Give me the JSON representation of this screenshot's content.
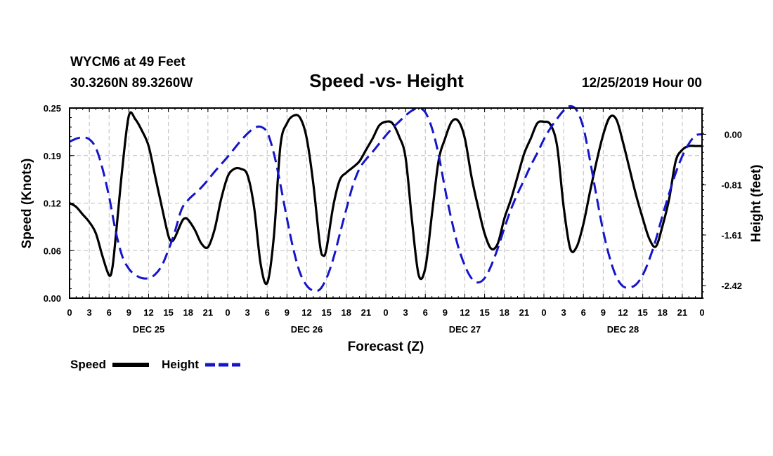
{
  "header": {
    "station": "WYCM6 at 49 Feet",
    "coords": "30.3260N 89.3260W",
    "title": "Speed -vs- Height",
    "run": "12/25/2019 Hour 00"
  },
  "chart_data": {
    "type": "line",
    "title": "Speed -vs- Height",
    "xlabel": "Forecast (Z)",
    "ylabel": "Speed (Knots)",
    "y2label": "Height (feet)",
    "x_range_hours": [
      0,
      96
    ],
    "x_tick_labels": [
      "0",
      "3",
      "6",
      "9",
      "12",
      "15",
      "18",
      "21",
      "0",
      "3",
      "6",
      "9",
      "12",
      "15",
      "18",
      "21",
      "0",
      "3",
      "6",
      "9",
      "12",
      "15",
      "18",
      "21",
      "0",
      "3",
      "6",
      "9",
      "12",
      "15",
      "18",
      "21",
      "0"
    ],
    "day_labels": [
      "DEC 25",
      "DEC 26",
      "DEC 27",
      "DEC 28"
    ],
    "y_ticks": [
      "0.00",
      "0.06",
      "0.12",
      "0.19",
      "0.25"
    ],
    "y_range": [
      0,
      0.25
    ],
    "y2_ticks": [
      "0.00",
      "-0.81",
      "-1.61",
      "-2.42"
    ],
    "y2_range": [
      -2.62,
      0.42
    ],
    "grid": true,
    "series": [
      {
        "name": "Speed",
        "axis": "left",
        "color": "#000000",
        "style": "solid",
        "points": [
          [
            0,
            0.125
          ],
          [
            1,
            0.12
          ],
          [
            2,
            0.11
          ],
          [
            3,
            0.1
          ],
          [
            4,
            0.085
          ],
          [
            5,
            0.055
          ],
          [
            6,
            0.03
          ],
          [
            6.5,
            0.04
          ],
          [
            7,
            0.08
          ],
          [
            8,
            0.17
          ],
          [
            9,
            0.24
          ],
          [
            10,
            0.235
          ],
          [
            11,
            0.22
          ],
          [
            12,
            0.2
          ],
          [
            13,
            0.16
          ],
          [
            14,
            0.12
          ],
          [
            15,
            0.082
          ],
          [
            15.5,
            0.075
          ],
          [
            16,
            0.08
          ],
          [
            17,
            0.1
          ],
          [
            17.5,
            0.105
          ],
          [
            18,
            0.103
          ],
          [
            19,
            0.09
          ],
          [
            20,
            0.072
          ],
          [
            21,
            0.067
          ],
          [
            22,
            0.09
          ],
          [
            23,
            0.13
          ],
          [
            24,
            0.16
          ],
          [
            25,
            0.17
          ],
          [
            26,
            0.17
          ],
          [
            27,
            0.162
          ],
          [
            28,
            0.12
          ],
          [
            29,
            0.045
          ],
          [
            30,
            0.02
          ],
          [
            31,
            0.08
          ],
          [
            32,
            0.2
          ],
          [
            33,
            0.23
          ],
          [
            34,
            0.24
          ],
          [
            35,
            0.237
          ],
          [
            36,
            0.21
          ],
          [
            37,
            0.15
          ],
          [
            38,
            0.07
          ],
          [
            38.5,
            0.056
          ],
          [
            39,
            0.065
          ],
          [
            40,
            0.12
          ],
          [
            41,
            0.155
          ],
          [
            42,
            0.165
          ],
          [
            43,
            0.172
          ],
          [
            44,
            0.18
          ],
          [
            45,
            0.195
          ],
          [
            46,
            0.21
          ],
          [
            47,
            0.227
          ],
          [
            48,
            0.232
          ],
          [
            49,
            0.23
          ],
          [
            50,
            0.213
          ],
          [
            51,
            0.185
          ],
          [
            52,
            0.1
          ],
          [
            53,
            0.03
          ],
          [
            54,
            0.04
          ],
          [
            55,
            0.11
          ],
          [
            56,
            0.18
          ],
          [
            57,
            0.21
          ],
          [
            58,
            0.232
          ],
          [
            59,
            0.233
          ],
          [
            60,
            0.21
          ],
          [
            61,
            0.16
          ],
          [
            62,
            0.12
          ],
          [
            63,
            0.085
          ],
          [
            64,
            0.065
          ],
          [
            65,
            0.072
          ],
          [
            66,
            0.105
          ],
          [
            67,
            0.13
          ],
          [
            68,
            0.16
          ],
          [
            69,
            0.19
          ],
          [
            70,
            0.21
          ],
          [
            71,
            0.23
          ],
          [
            72,
            0.232
          ],
          [
            73,
            0.228
          ],
          [
            74,
            0.2
          ],
          [
            75,
            0.12
          ],
          [
            76,
            0.065
          ],
          [
            77,
            0.068
          ],
          [
            78,
            0.098
          ],
          [
            79,
            0.14
          ],
          [
            80,
            0.18
          ],
          [
            81,
            0.215
          ],
          [
            82,
            0.238
          ],
          [
            83,
            0.235
          ],
          [
            84,
            0.205
          ],
          [
            85,
            0.17
          ],
          [
            86,
            0.135
          ],
          [
            87,
            0.105
          ],
          [
            88,
            0.078
          ],
          [
            89,
            0.068
          ],
          [
            90,
            0.095
          ],
          [
            91,
            0.13
          ],
          [
            92,
            0.18
          ],
          [
            93,
            0.195
          ],
          [
            94,
            0.2
          ],
          [
            95,
            0.2
          ],
          [
            96,
            0.2
          ]
        ]
      },
      {
        "name": "Height",
        "axis": "right",
        "color": "#1515c9",
        "style": "dashed",
        "points": [
          [
            0,
            -0.12
          ],
          [
            1,
            -0.07
          ],
          [
            2,
            -0.05
          ],
          [
            3,
            -0.08
          ],
          [
            4,
            -0.22
          ],
          [
            5,
            -0.55
          ],
          [
            6,
            -1.0
          ],
          [
            7,
            -1.55
          ],
          [
            8,
            -1.95
          ],
          [
            9,
            -2.15
          ],
          [
            10,
            -2.25
          ],
          [
            11,
            -2.3
          ],
          [
            12,
            -2.3
          ],
          [
            13,
            -2.24
          ],
          [
            14,
            -2.1
          ],
          [
            15,
            -1.85
          ],
          [
            16,
            -1.55
          ],
          [
            17,
            -1.2
          ],
          [
            18,
            -1.05
          ],
          [
            19,
            -0.95
          ],
          [
            20,
            -0.85
          ],
          [
            21,
            -0.73
          ],
          [
            22,
            -0.6
          ],
          [
            23,
            -0.48
          ],
          [
            24,
            -0.36
          ],
          [
            25,
            -0.23
          ],
          [
            26,
            -0.1
          ],
          [
            27,
            0.01
          ],
          [
            28,
            0.1
          ],
          [
            29,
            0.12
          ],
          [
            30,
            0.03
          ],
          [
            31,
            -0.3
          ],
          [
            32,
            -0.8
          ],
          [
            33,
            -1.35
          ],
          [
            34,
            -1.85
          ],
          [
            35,
            -2.22
          ],
          [
            36,
            -2.42
          ],
          [
            37,
            -2.5
          ],
          [
            38,
            -2.48
          ],
          [
            39,
            -2.3
          ],
          [
            40,
            -2.0
          ],
          [
            41,
            -1.6
          ],
          [
            42,
            -1.2
          ],
          [
            43,
            -0.82
          ],
          [
            44,
            -0.55
          ],
          [
            45,
            -0.4
          ],
          [
            46,
            -0.28
          ],
          [
            47,
            -0.15
          ],
          [
            48,
            -0.02
          ],
          [
            49,
            0.1
          ],
          [
            50,
            0.2
          ],
          [
            51,
            0.3
          ],
          [
            52,
            0.38
          ],
          [
            53,
            0.42
          ],
          [
            54,
            0.35
          ],
          [
            55,
            0.1
          ],
          [
            56,
            -0.32
          ],
          [
            57,
            -0.88
          ],
          [
            58,
            -1.38
          ],
          [
            59,
            -1.8
          ],
          [
            60,
            -2.1
          ],
          [
            61,
            -2.3
          ],
          [
            62,
            -2.37
          ],
          [
            63,
            -2.3
          ],
          [
            64,
            -2.1
          ],
          [
            65,
            -1.82
          ],
          [
            66,
            -1.5
          ],
          [
            67,
            -1.2
          ],
          [
            68,
            -0.95
          ],
          [
            69,
            -0.73
          ],
          [
            70,
            -0.5
          ],
          [
            71,
            -0.3
          ],
          [
            72,
            -0.08
          ],
          [
            73,
            0.1
          ],
          [
            74,
            0.25
          ],
          [
            75,
            0.38
          ],
          [
            76,
            0.45
          ],
          [
            77,
            0.38
          ],
          [
            78,
            0.1
          ],
          [
            79,
            -0.42
          ],
          [
            80,
            -1.0
          ],
          [
            81,
            -1.55
          ],
          [
            82,
            -1.98
          ],
          [
            83,
            -2.28
          ],
          [
            84,
            -2.43
          ],
          [
            85,
            -2.45
          ],
          [
            86,
            -2.4
          ],
          [
            87,
            -2.25
          ],
          [
            88,
            -2.0
          ],
          [
            89,
            -1.68
          ],
          [
            90,
            -1.3
          ],
          [
            91,
            -0.95
          ],
          [
            92,
            -0.62
          ],
          [
            93,
            -0.35
          ],
          [
            94,
            -0.15
          ],
          [
            95,
            -0.02
          ],
          [
            96,
            0.0
          ]
        ]
      }
    ]
  },
  "legend": {
    "speed_label": "Speed",
    "height_label": "Height"
  }
}
